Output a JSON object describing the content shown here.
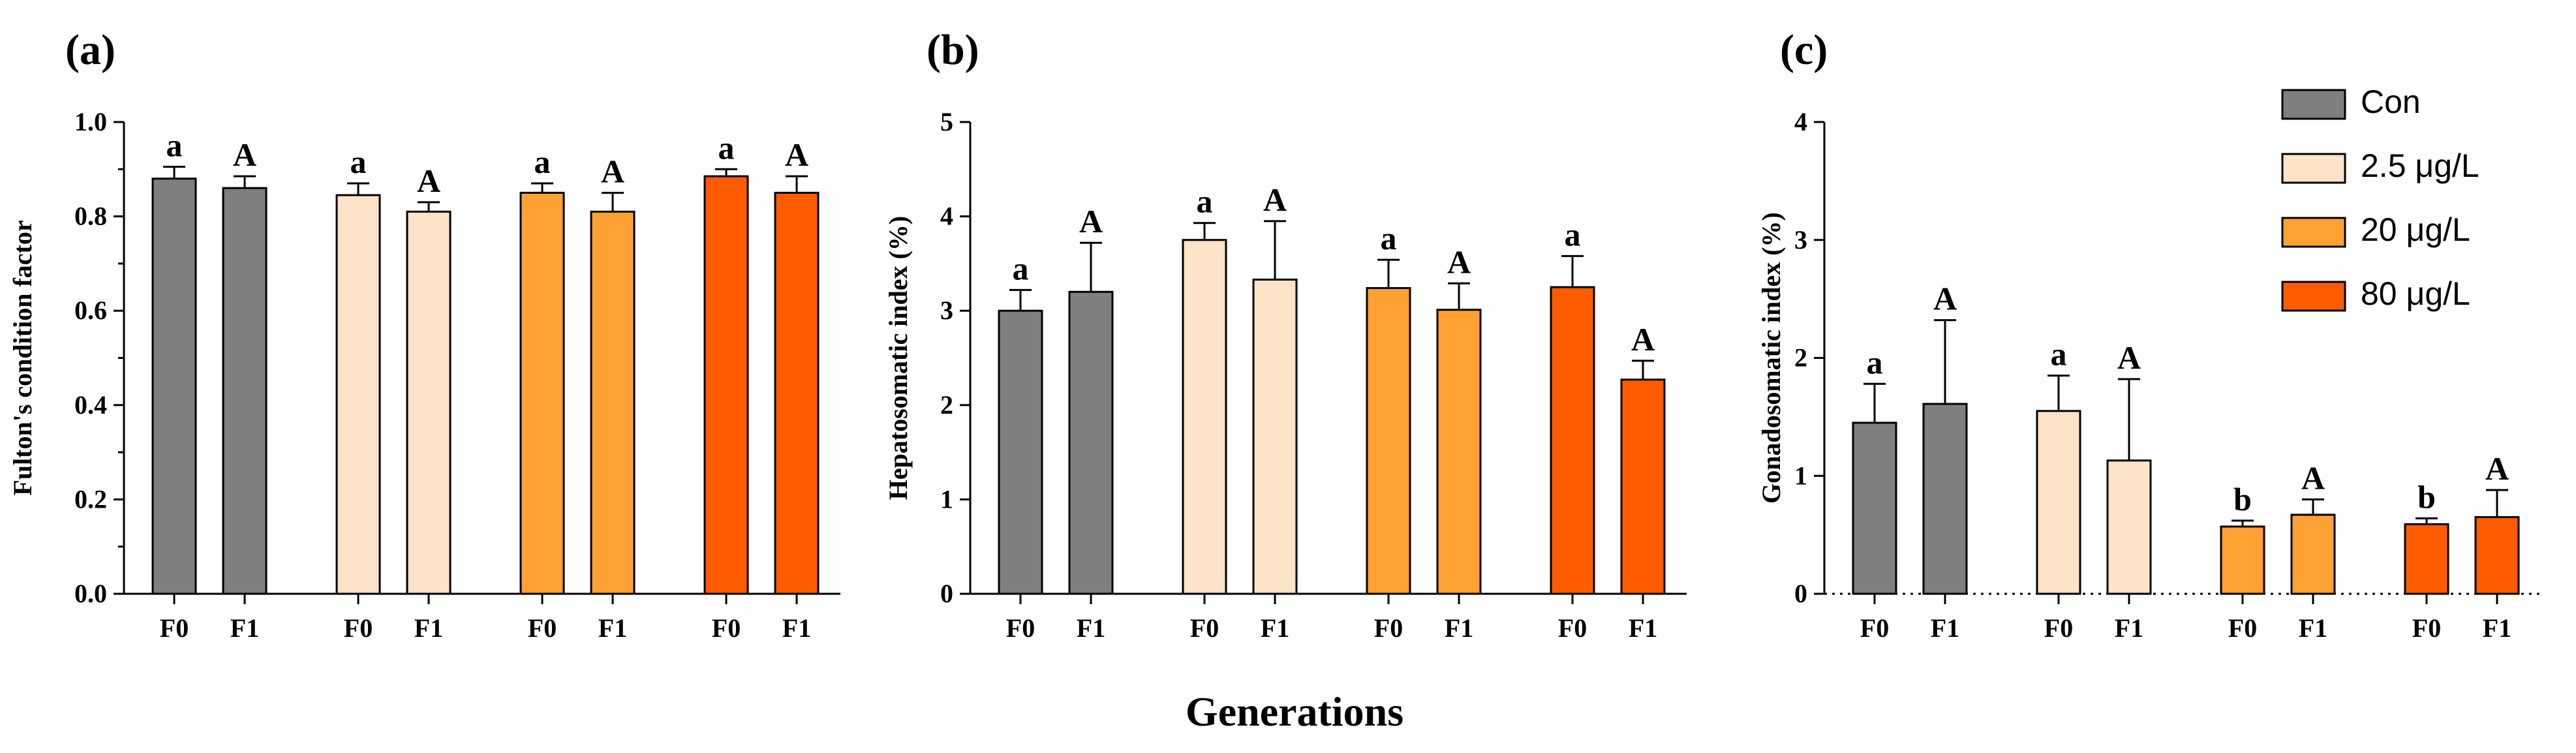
{
  "figure": {
    "xlabel": "Generations",
    "colors": {
      "Con": "#7f7f7f",
      "2.5 μg/L": "#fde3c8",
      "20 μg/L": "#ffa233",
      "80 μg/L": "#ff5c00"
    }
  },
  "legend": {
    "placement": "top-right",
    "entries": [
      "Con",
      "2.5 μg/L",
      "20 μg/L",
      "80 μg/L"
    ]
  },
  "chart_data": [
    {
      "panel": "(a)",
      "type": "bar",
      "ylabel": "Fulton's condition factor",
      "ylim": [
        0,
        1.0
      ],
      "yticks": [
        "0.0",
        "0.2",
        "0.4",
        "0.6",
        "0.8",
        "1.0"
      ],
      "ticks": [
        0,
        0.2,
        0.4,
        0.6,
        0.8,
        1.0
      ],
      "minor": true,
      "groups": [
        "Con",
        "2.5 μg/L",
        "20 μg/L",
        "80 μg/L"
      ],
      "categories": [
        "F0",
        "F1"
      ],
      "series": [
        {
          "name": "Con",
          "values": [
            0.88,
            0.86
          ],
          "errors": [
            0.025,
            0.025
          ],
          "labels": [
            "a",
            "A"
          ]
        },
        {
          "name": "2.5 μg/L",
          "values": [
            0.845,
            0.81
          ],
          "errors": [
            0.025,
            0.02
          ],
          "labels": [
            "a",
            "A"
          ]
        },
        {
          "name": "20 μg/L",
          "values": [
            0.85,
            0.81
          ],
          "errors": [
            0.02,
            0.04
          ],
          "labels": [
            "a",
            "A"
          ]
        },
        {
          "name": "80 μg/L",
          "values": [
            0.885,
            0.85
          ],
          "errors": [
            0.015,
            0.035
          ],
          "labels": [
            "a",
            "A"
          ]
        }
      ]
    },
    {
      "panel": "(b)",
      "type": "bar",
      "ylabel": "Hepatosomatic index (%)",
      "ylim": [
        0,
        5
      ],
      "yticks": [
        "0",
        "1",
        "2",
        "3",
        "4",
        "5"
      ],
      "ticks": [
        0,
        1,
        2,
        3,
        4,
        5
      ],
      "minor": false,
      "groups": [
        "Con",
        "2.5 μg/L",
        "20 μg/L",
        "80 μg/L"
      ],
      "categories": [
        "F0",
        "F1"
      ],
      "series": [
        {
          "name": "Con",
          "values": [
            3.0,
            3.2
          ],
          "errors": [
            0.22,
            0.52
          ],
          "labels": [
            "a",
            "A"
          ]
        },
        {
          "name": "2.5 μg/L",
          "values": [
            3.75,
            3.33
          ],
          "errors": [
            0.18,
            0.62
          ],
          "labels": [
            "a",
            "A"
          ]
        },
        {
          "name": "20 μg/L",
          "values": [
            3.24,
            3.01
          ],
          "errors": [
            0.3,
            0.28
          ],
          "labels": [
            "a",
            "A"
          ]
        },
        {
          "name": "80 μg/L",
          "values": [
            3.25,
            2.27
          ],
          "errors": [
            0.33,
            0.2
          ],
          "labels": [
            "a",
            "A"
          ]
        }
      ]
    },
    {
      "panel": "(c)",
      "type": "bar",
      "ylabel": "Gonadosomatic index (%)",
      "ylim": [
        0,
        4
      ],
      "yticks": [
        "0",
        "1",
        "2",
        "3",
        "4"
      ],
      "ticks": [
        0,
        1,
        2,
        3,
        4
      ],
      "minor": false,
      "dotted_baseline": true,
      "groups": [
        "Con",
        "2.5 μg/L",
        "20 μg/L",
        "80 μg/L"
      ],
      "categories": [
        "F0",
        "F1"
      ],
      "series": [
        {
          "name": "Con",
          "values": [
            1.45,
            1.61
          ],
          "errors": [
            0.33,
            0.71
          ],
          "labels": [
            "a",
            "A"
          ]
        },
        {
          "name": "2.5 μg/L",
          "values": [
            1.55,
            1.13
          ],
          "errors": [
            0.3,
            0.69
          ],
          "labels": [
            "a",
            "A"
          ]
        },
        {
          "name": "20 μg/L",
          "values": [
            0.57,
            0.67
          ],
          "errors": [
            0.05,
            0.13
          ],
          "labels": [
            "b",
            "A"
          ]
        },
        {
          "name": "80 μg/L",
          "values": [
            0.59,
            0.65
          ],
          "errors": [
            0.05,
            0.23
          ],
          "labels": [
            "b",
            "A"
          ]
        }
      ]
    }
  ]
}
